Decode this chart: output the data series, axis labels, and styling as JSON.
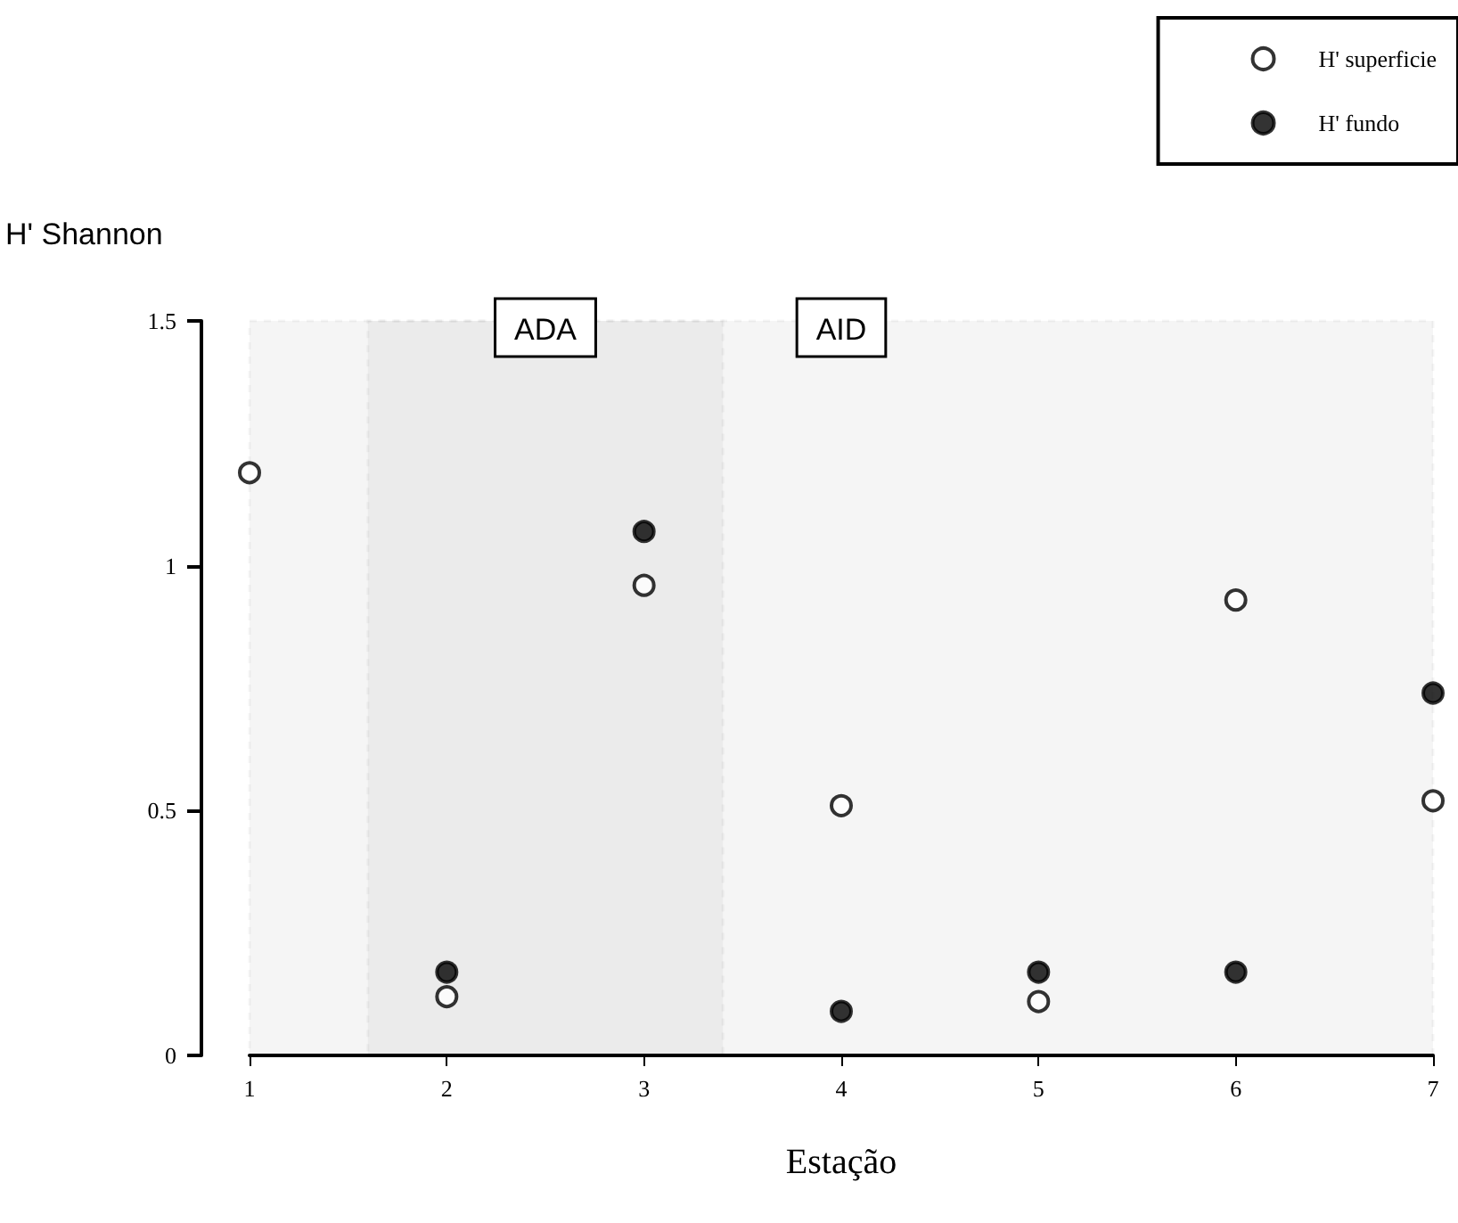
{
  "chart_data": {
    "type": "scatter",
    "xlabel": "Estação",
    "ylabel": "H' Shannon",
    "x": [
      1,
      2,
      3,
      4,
      5,
      6,
      7
    ],
    "series": [
      {
        "name": "H' superficie",
        "color": "#ffffff",
        "values": [
          1.19,
          0.12,
          0.96,
          0.51,
          0.11,
          0.93,
          0.52
        ]
      },
      {
        "name": "H' fundo",
        "color": "#000000",
        "values": [
          null,
          0.17,
          1.07,
          0.09,
          0.17,
          0.17,
          0.74
        ]
      }
    ],
    "xlim": [
      1,
      7
    ],
    "xticks": [
      1,
      2,
      3,
      4,
      5,
      6,
      7
    ],
    "ylim": [
      0,
      1.5
    ],
    "yticks": [
      0,
      0.5,
      1,
      1.5
    ],
    "bands": [
      {
        "axis": "x",
        "from": 1,
        "to": 7,
        "label": "AID",
        "color": "#000000"
      },
      {
        "axis": "x",
        "from": 1.6,
        "to": 3.4,
        "label": "ADA",
        "color": "#000000"
      }
    ],
    "marker": "circle",
    "grid": false,
    "legend": "top right"
  }
}
